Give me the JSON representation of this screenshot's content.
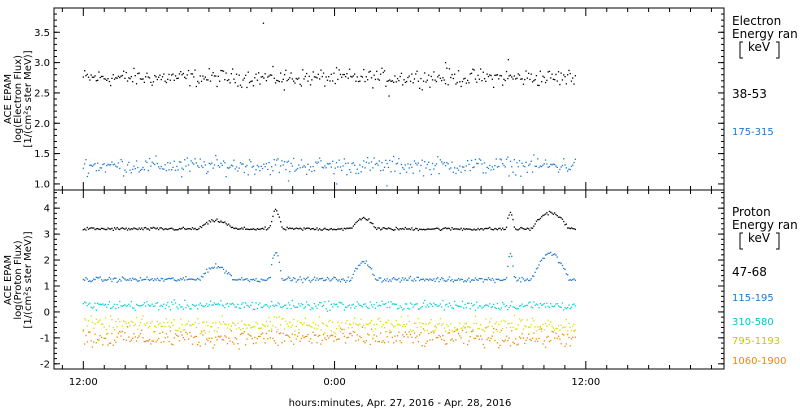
{
  "chart_data": [
    {
      "type": "scatter",
      "title": "",
      "ylabel_lines": [
        "ACE EPAM",
        "log(Electron Flux)",
        "[1/(cm²s ster MeV)]"
      ],
      "ylim": [
        0.9,
        3.9
      ],
      "yticks": [
        1.0,
        1.5,
        2.0,
        2.5,
        3.0,
        3.5
      ],
      "ytick_labels": [
        "1.0",
        "1.5",
        "2.0",
        "2.5",
        "3.0",
        "3.5"
      ],
      "legend_title": [
        "Electron",
        "Energy ran"
      ],
      "legend_unit": "keV",
      "series": [
        {
          "name": "38-53",
          "color": "#000000",
          "x": [
            0,
            23.5
          ],
          "y_level": 2.75,
          "y_spread": 0.12,
          "outliers": [
            [
              8.6,
              3.65
            ],
            [
              14.6,
              2.45
            ],
            [
              17.3,
              3.0
            ],
            [
              20.3,
              3.05
            ],
            [
              9.6,
              2.55
            ]
          ]
        },
        {
          "name": "175-315",
          "color": "#1a78d2",
          "x": [
            0,
            23.5
          ],
          "y_level": 1.3,
          "y_spread": 0.12,
          "outliers": [
            [
              4.7,
              1.12
            ],
            [
              9.8,
              1.05
            ],
            [
              12.1,
              1.0
            ],
            [
              14.5,
              0.97
            ]
          ]
        }
      ]
    },
    {
      "type": "scatter",
      "title": "",
      "ylabel_lines": [
        "ACE EPAM",
        "log(Proton Flux)",
        "[1/(cm²s ster MeV)]"
      ],
      "ylim": [
        -2.2,
        4.7
      ],
      "yticks": [
        -2,
        -1,
        0,
        1,
        2,
        3,
        4
      ],
      "ytick_labels": [
        "-2",
        "-1",
        "0",
        "1",
        "2",
        "3",
        "4"
      ],
      "legend_title": [
        "Proton",
        "Energy ran"
      ],
      "legend_unit": "keV",
      "series": [
        {
          "name": "47-68",
          "color": "#000000",
          "x": [
            0,
            23.5
          ],
          "y_level": 3.2,
          "y_spread": 0.05
        },
        {
          "name": "115-195",
          "color": "#1a78d2",
          "x": [
            0,
            23.5
          ],
          "y_level": 1.25,
          "y_spread": 0.08
        },
        {
          "name": "310-580",
          "color": "#00d6d6",
          "x": [
            0,
            23.5
          ],
          "y_level": 0.25,
          "y_spread": 0.15
        },
        {
          "name": "795-1193",
          "color": "#d8e000",
          "x": [
            0,
            23.5
          ],
          "y_level": -0.5,
          "y_spread": 0.25
        },
        {
          "name": "1060-1900",
          "color": "#ef8a00",
          "x": [
            0,
            23.5
          ],
          "y_level": -1.0,
          "y_spread": 0.3
        }
      ]
    }
  ],
  "x_axis": {
    "range_hours": [
      -1.4,
      30.6
    ],
    "ticks": [
      {
        "hour": 0,
        "label": "12:00"
      },
      {
        "hour": 12,
        "label": "0:00"
      },
      {
        "hour": 24,
        "label": "12:00"
      }
    ],
    "minor_step_hours": 1,
    "xlabel": "hours:minutes, Apr. 27, 2016 - Apr. 28, 2016"
  }
}
